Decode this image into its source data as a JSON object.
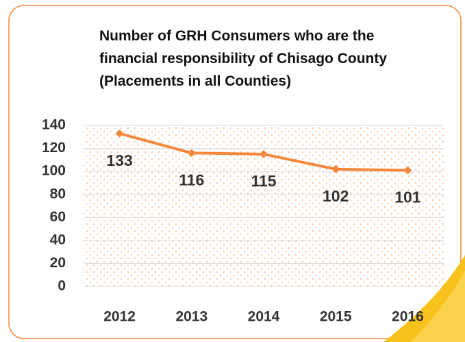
{
  "chart_data": {
    "type": "line",
    "title": "Number of GRH Consumers who are the financial responsibility of Chisago County (Placements in all Counties)",
    "categories": [
      "2012",
      "2013",
      "2014",
      "2015",
      "2016"
    ],
    "series": [
      {
        "name": "GRH Consumers",
        "color": "#f4883a",
        "values": [
          133,
          116,
          115,
          102,
          101
        ]
      }
    ],
    "ylim": [
      0,
      140
    ],
    "yticks": [
      0,
      20,
      40,
      60,
      80,
      100,
      120,
      140
    ],
    "grid": true
  }
}
